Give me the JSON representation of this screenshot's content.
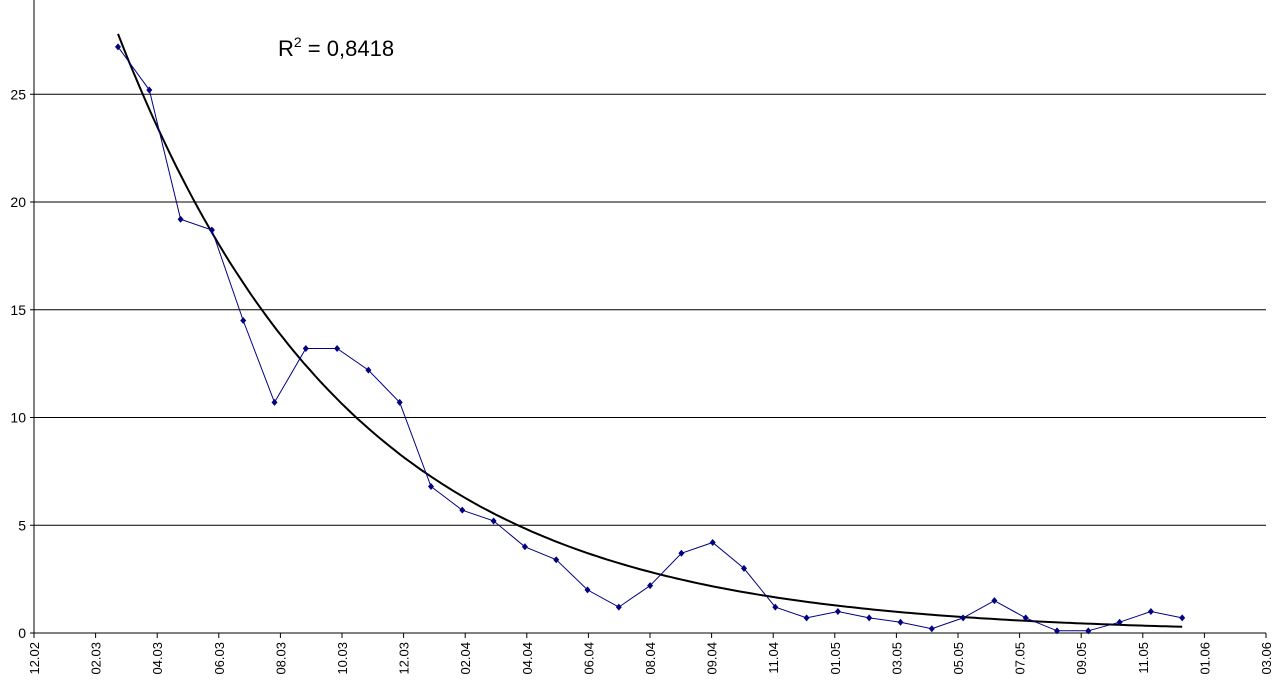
{
  "chart_data": {
    "type": "line",
    "annotation": {
      "base": "R",
      "sup": "2",
      "rest": " = 0,8418"
    },
    "ylim": [
      0,
      28
    ],
    "yticks": [
      "0",
      "5",
      "10",
      "15",
      "20",
      "25"
    ],
    "xticks": [
      "12.02",
      "02.03",
      "04.03",
      "06.03",
      "08.03",
      "10.03",
      "12.03",
      "02.04",
      "04.04",
      "06.04",
      "08.04",
      "09.04",
      "11.04",
      "01.05",
      "03.05",
      "05.05",
      "07.05",
      "09.05",
      "11.05",
      "01.06",
      "03.06"
    ],
    "grid": true,
    "series": [
      {
        "values": [
          27.2,
          25.2,
          19.2,
          18.7,
          14.5,
          10.7,
          13.2,
          13.2,
          12.2,
          10.7,
          6.8,
          5.7,
          5.2,
          4.0,
          3.4,
          2.0,
          1.2,
          2.2,
          3.7,
          4.2,
          3.0,
          1.2,
          0.7,
          1.0,
          0.7,
          0.5,
          0.2,
          0.7,
          1.5,
          0.7,
          0.1,
          0.1,
          0.5,
          1.0,
          0.7
        ],
        "color": "#000080",
        "marker": "diamond"
      },
      {
        "trend": "exponential",
        "a": 27.8,
        "b": -0.1343,
        "color": "#000000"
      }
    ]
  }
}
